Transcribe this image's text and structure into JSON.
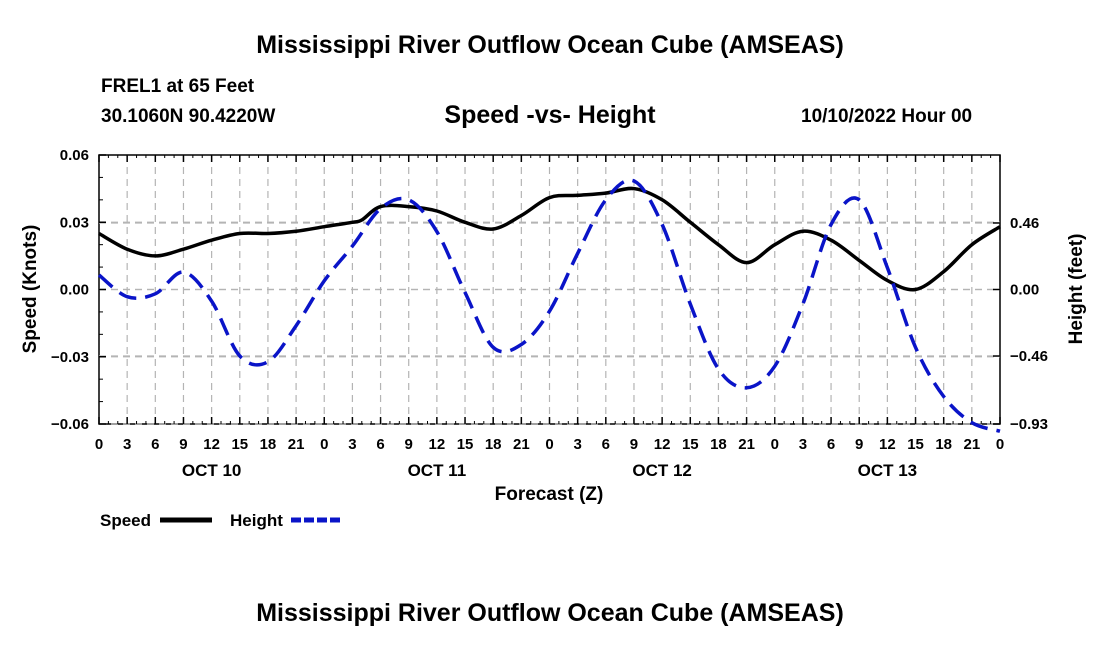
{
  "title": "Mississippi River Outflow Ocean Cube (AMSEAS)",
  "footer_title": "Mississippi River Outflow Ocean Cube (AMSEAS)",
  "station": "FREL1 at 65 Feet",
  "coordinates": "30.1060N  90.4220W",
  "subtitle": "Speed -vs- Height",
  "run_time": "10/10/2022 Hour 00",
  "legend": {
    "speed": "Speed",
    "height": "Height"
  },
  "colors": {
    "speed": "#000000",
    "height": "#0a14c8",
    "grid": "#b4b4b4"
  },
  "chart_data": {
    "type": "line",
    "xlabel": "Forecast (Z)",
    "ylabel": "Speed (Knots)",
    "y2label": "Height (feet)",
    "xlim": [
      0,
      96
    ],
    "ylim": [
      -0.06,
      0.06
    ],
    "y2lim": [
      -0.93,
      0.93
    ],
    "x_ticks": [
      0,
      3,
      6,
      9,
      12,
      15,
      18,
      21,
      24,
      27,
      30,
      33,
      36,
      39,
      42,
      45,
      48,
      51,
      54,
      57,
      60,
      63,
      66,
      69,
      72,
      75,
      78,
      81,
      84,
      87,
      90,
      93,
      96
    ],
    "x_tick_labels": [
      "0",
      "3",
      "6",
      "9",
      "12",
      "15",
      "18",
      "21",
      "0",
      "3",
      "6",
      "9",
      "12",
      "15",
      "18",
      "21",
      "0",
      "3",
      "6",
      "9",
      "12",
      "15",
      "18",
      "21",
      "0",
      "3",
      "6",
      "9",
      "12",
      "15",
      "18",
      "21",
      "0"
    ],
    "date_labels": [
      {
        "x": 12,
        "label": "OCT 10"
      },
      {
        "x": 36,
        "label": "OCT 11"
      },
      {
        "x": 60,
        "label": "OCT 12"
      },
      {
        "x": 84,
        "label": "OCT 13"
      }
    ],
    "y_ticks": [
      -0.06,
      -0.03,
      0.0,
      0.03,
      0.06
    ],
    "y_tick_labels": [
      "−0.06",
      "−0.03",
      "0.00",
      "0.03",
      "0.06"
    ],
    "y2_ticks": [
      -0.93,
      -0.46,
      0.0,
      0.46
    ],
    "y2_tick_labels": [
      "−0.93",
      "−0.46",
      "0.00",
      "0.46"
    ],
    "grid": true,
    "series": [
      {
        "name": "Speed",
        "axis": "left",
        "style": "solid",
        "x": [
          0,
          3,
          6,
          9,
          12,
          15,
          18,
          21,
          24,
          27,
          28,
          30,
          33,
          36,
          39,
          42,
          45,
          48,
          51,
          54,
          57,
          60,
          63,
          66,
          69,
          72,
          75,
          78,
          81,
          84,
          87,
          90,
          93,
          96
        ],
        "y": [
          0.025,
          0.018,
          0.015,
          0.018,
          0.022,
          0.025,
          0.025,
          0.026,
          0.028,
          0.03,
          0.031,
          0.037,
          0.037,
          0.035,
          0.03,
          0.027,
          0.033,
          0.041,
          0.042,
          0.043,
          0.045,
          0.04,
          0.03,
          0.02,
          0.012,
          0.02,
          0.026,
          0.022,
          0.013,
          0.004,
          0.0,
          0.008,
          0.02,
          0.028
        ]
      },
      {
        "name": "Height",
        "axis": "right",
        "style": "dashed",
        "x": [
          0,
          3,
          6,
          9,
          12,
          15,
          18,
          21,
          24,
          27,
          30,
          33,
          36,
          39,
          42,
          45,
          48,
          51,
          54,
          57,
          60,
          63,
          66,
          69,
          72,
          75,
          78,
          81,
          84,
          87,
          90,
          93,
          96
        ],
        "y": [
          0.1,
          -0.05,
          -0.03,
          0.12,
          -0.08,
          -0.46,
          -0.5,
          -0.25,
          0.06,
          0.3,
          0.56,
          0.62,
          0.4,
          -0.02,
          -0.4,
          -0.38,
          -0.15,
          0.25,
          0.62,
          0.75,
          0.45,
          -0.1,
          -0.55,
          -0.68,
          -0.53,
          -0.1,
          0.45,
          0.62,
          0.15,
          -0.4,
          -0.74,
          -0.92,
          -0.98
        ]
      }
    ]
  }
}
